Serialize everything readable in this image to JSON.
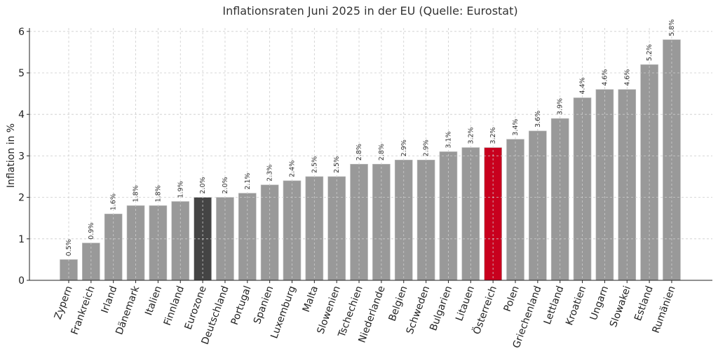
{
  "chart_data": {
    "type": "bar",
    "title": "Inflationsraten Juni 2025 in der EU (Quelle: Eurostat)",
    "xlabel": "",
    "ylabel": "Inflation in %",
    "ylim": [
      0,
      6.1
    ],
    "yticks": [
      "0",
      "1",
      "2",
      "3",
      "4",
      "5",
      "6"
    ],
    "grid": true,
    "categories": [
      "Zypern",
      "Frankreich",
      "Irland",
      "Dänemark",
      "Italien",
      "Finnland",
      "Eurozone",
      "Deutschland",
      "Portugal",
      "Spanien",
      "Luxemburg",
      "Malta",
      "Slowenien",
      "Tschechien",
      "Niederlande",
      "Belgien",
      "Schweden",
      "Bulgarien",
      "Litauen",
      "Österreich",
      "Polen",
      "Griechenland",
      "Lettland",
      "Kroatien",
      "Ungarn",
      "Slowakei",
      "Estland",
      "Rumänien"
    ],
    "values": [
      0.5,
      0.9,
      1.6,
      1.8,
      1.8,
      1.9,
      2.0,
      2.0,
      2.1,
      2.3,
      2.4,
      2.5,
      2.5,
      2.8,
      2.8,
      2.9,
      2.9,
      3.1,
      3.2,
      3.2,
      3.4,
      3.6,
      3.9,
      4.4,
      4.6,
      4.6,
      5.2,
      5.8
    ],
    "data_labels": [
      "0.5%",
      "0.9%",
      "1.6%",
      "1.8%",
      "1.8%",
      "1.9%",
      "2.0%",
      "2.0%",
      "2.1%",
      "2.3%",
      "2.4%",
      "2.5%",
      "2.5%",
      "2.8%",
      "2.8%",
      "2.9%",
      "2.9%",
      "3.1%",
      "3.2%",
      "3.2%",
      "3.4%",
      "3.6%",
      "3.9%",
      "4.4%",
      "4.6%",
      "4.6%",
      "5.2%",
      "5.8%"
    ],
    "colors": {
      "default": "#999999",
      "Eurozone": "#444444",
      "Österreich": "#c8001e"
    }
  }
}
